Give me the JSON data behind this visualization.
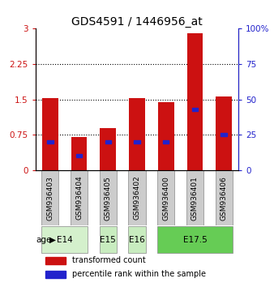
{
  "title": "GDS4591 / 1446956_at",
  "samples": [
    "GSM936403",
    "GSM936404",
    "GSM936405",
    "GSM936402",
    "GSM936400",
    "GSM936401",
    "GSM936406"
  ],
  "red_values": [
    1.52,
    0.7,
    0.9,
    1.52,
    1.45,
    2.9,
    1.57
  ],
  "blue_percentile": [
    20,
    10,
    20,
    20,
    20,
    43,
    25
  ],
  "ylim_left": [
    0,
    3
  ],
  "ylim_right": [
    0,
    100
  ],
  "yticks_left": [
    0,
    0.75,
    1.5,
    2.25,
    3
  ],
  "yticks_right": [
    0,
    25,
    50,
    75,
    100
  ],
  "ytick_labels_left": [
    "0",
    "0.75",
    "1.5",
    "2.25",
    "3"
  ],
  "ytick_labels_right": [
    "0",
    "25",
    "50",
    "75",
    "100%"
  ],
  "age_groups": [
    {
      "label": "E14",
      "samples": [
        "GSM936403",
        "GSM936404"
      ],
      "color": "#d4f0cc"
    },
    {
      "label": "E15",
      "samples": [
        "GSM936405"
      ],
      "color": "#c8ecbf"
    },
    {
      "label": "E16",
      "samples": [
        "GSM936402"
      ],
      "color": "#c8ecbf"
    },
    {
      "label": "E17.5",
      "samples": [
        "GSM936400",
        "GSM936401",
        "GSM936406"
      ],
      "color": "#66cc55"
    }
  ],
  "bar_color_red": "#cc1111",
  "bar_color_blue": "#2222cc",
  "bar_width": 0.55,
  "grid_color": "black",
  "grid_linestyle": ":",
  "grid_linewidth": 0.8,
  "sample_box_color": "#cccccc",
  "legend_items": [
    {
      "color": "#cc1111",
      "label": "transformed count"
    },
    {
      "color": "#2222cc",
      "label": "percentile rank within the sample"
    }
  ],
  "title_fontsize": 10,
  "tick_fontsize": 7.5,
  "sample_fontsize": 6.5,
  "age_fontsize": 7.5,
  "legend_fontsize": 7
}
